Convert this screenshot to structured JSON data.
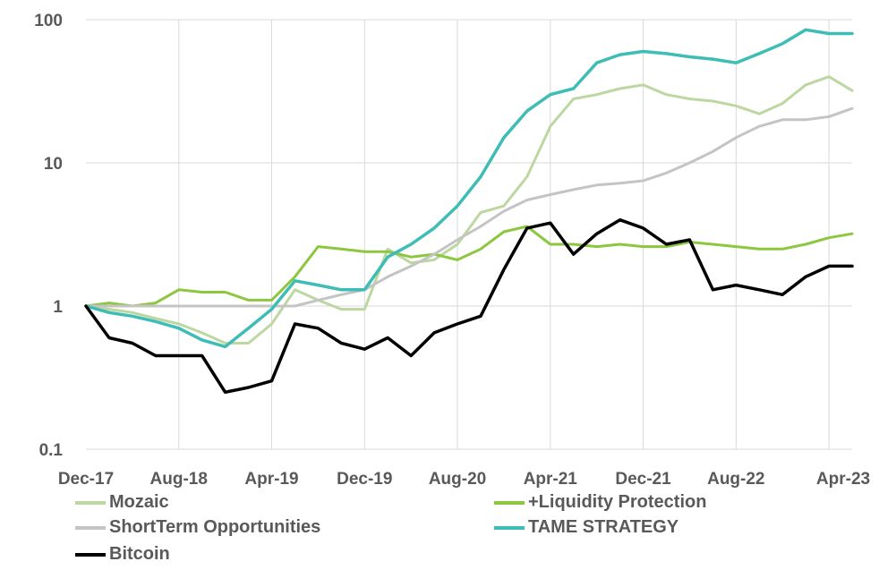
{
  "chart_data": {
    "type": "line",
    "title": "",
    "xlabel": "",
    "ylabel": "",
    "y_scale": "log",
    "ylim": [
      0.1,
      100
    ],
    "y_ticks": [
      "100",
      "10",
      "1",
      "0.1"
    ],
    "x_ticks": [
      "Dec-17",
      "Aug-18",
      "Apr-19",
      "Dec-19",
      "Aug-20",
      "Apr-21",
      "Dec-21",
      "Aug-22",
      "Apr-23"
    ],
    "x_range": [
      "Dec-17",
      "Jun-23"
    ],
    "grid": "vertical and horizontal light gray",
    "legend_position": "bottom",
    "series": [
      {
        "name": "Mozaic",
        "color": "#bcd7a0",
        "x": [
          "Dec-17",
          "Feb-18",
          "Apr-18",
          "Jun-18",
          "Aug-18",
          "Oct-18",
          "Dec-18",
          "Feb-19",
          "Apr-19",
          "Jun-19",
          "Aug-19",
          "Oct-19",
          "Dec-19",
          "Feb-20",
          "Apr-20",
          "Jun-20",
          "Aug-20",
          "Oct-20",
          "Dec-20",
          "Feb-21",
          "Apr-21",
          "Jun-21",
          "Aug-21",
          "Oct-21",
          "Dec-21",
          "Feb-22",
          "Apr-22",
          "Jun-22",
          "Aug-22",
          "Oct-22",
          "Dec-22",
          "Feb-23",
          "Apr-23",
          "Jun-23"
        ],
        "values": [
          1.0,
          0.95,
          0.9,
          0.82,
          0.75,
          0.65,
          0.55,
          0.55,
          0.75,
          1.3,
          1.1,
          0.95,
          0.95,
          2.5,
          2.0,
          2.1,
          2.7,
          4.5,
          5.0,
          8.0,
          18,
          28,
          30,
          33,
          35,
          30,
          28,
          27,
          25,
          22,
          26,
          35,
          40,
          32
        ]
      },
      {
        "name": "+Liquidity Protection",
        "color": "#8dc63f",
        "x": [
          "Dec-17",
          "Feb-18",
          "Apr-18",
          "Jun-18",
          "Aug-18",
          "Oct-18",
          "Dec-18",
          "Feb-19",
          "Apr-19",
          "Jun-19",
          "Aug-19",
          "Oct-19",
          "Dec-19",
          "Feb-20",
          "Apr-20",
          "Jun-20",
          "Aug-20",
          "Oct-20",
          "Dec-20",
          "Feb-21",
          "Apr-21",
          "Jun-21",
          "Aug-21",
          "Oct-21",
          "Dec-21",
          "Feb-22",
          "Apr-22",
          "Jun-22",
          "Aug-22",
          "Oct-22",
          "Dec-22",
          "Feb-23",
          "Apr-23",
          "Jun-23"
        ],
        "values": [
          1.0,
          1.05,
          1.0,
          1.05,
          1.3,
          1.25,
          1.25,
          1.1,
          1.1,
          1.6,
          2.6,
          2.5,
          2.4,
          2.4,
          2.2,
          2.3,
          2.1,
          2.5,
          3.3,
          3.6,
          2.7,
          2.7,
          2.6,
          2.7,
          2.6,
          2.6,
          2.8,
          2.7,
          2.6,
          2.5,
          2.5,
          2.7,
          3.0,
          3.2
        ]
      },
      {
        "name": "ShortTerm Opportunities",
        "color": "#c4c4c4",
        "x": [
          "Dec-17",
          "Feb-18",
          "Apr-18",
          "Jun-18",
          "Aug-18",
          "Oct-18",
          "Dec-18",
          "Feb-19",
          "Apr-19",
          "Jun-19",
          "Aug-19",
          "Oct-19",
          "Dec-19",
          "Feb-20",
          "Apr-20",
          "Jun-20",
          "Aug-20",
          "Oct-20",
          "Dec-20",
          "Feb-21",
          "Apr-21",
          "Jun-21",
          "Aug-21",
          "Oct-21",
          "Dec-21",
          "Feb-22",
          "Apr-22",
          "Jun-22",
          "Aug-22",
          "Oct-22",
          "Dec-22",
          "Feb-23",
          "Apr-23",
          "Jun-23"
        ],
        "values": [
          1.0,
          1.0,
          1.0,
          1.0,
          1.0,
          1.0,
          1.0,
          1.0,
          1.0,
          1.0,
          1.1,
          1.2,
          1.3,
          1.6,
          1.9,
          2.3,
          2.9,
          3.6,
          4.6,
          5.5,
          6.0,
          6.5,
          7.0,
          7.2,
          7.5,
          8.5,
          10,
          12,
          15,
          18,
          20,
          20,
          21,
          24
        ]
      },
      {
        "name": "TAME STRATEGY",
        "color": "#3dbdb5",
        "x": [
          "Dec-17",
          "Feb-18",
          "Apr-18",
          "Jun-18",
          "Aug-18",
          "Oct-18",
          "Dec-18",
          "Feb-19",
          "Apr-19",
          "Jun-19",
          "Aug-19",
          "Oct-19",
          "Dec-19",
          "Feb-20",
          "Apr-20",
          "Jun-20",
          "Aug-20",
          "Oct-20",
          "Dec-20",
          "Feb-21",
          "Apr-21",
          "Jun-21",
          "Aug-21",
          "Oct-21",
          "Dec-21",
          "Feb-22",
          "Apr-22",
          "Jun-22",
          "Aug-22",
          "Oct-22",
          "Dec-22",
          "Feb-23",
          "Apr-23",
          "Jun-23"
        ],
        "values": [
          1.0,
          0.9,
          0.85,
          0.78,
          0.7,
          0.58,
          0.52,
          0.7,
          0.95,
          1.5,
          1.4,
          1.3,
          1.3,
          2.2,
          2.7,
          3.5,
          5.0,
          8.0,
          15,
          23,
          30,
          33,
          50,
          57,
          60,
          58,
          55,
          53,
          50,
          58,
          68,
          85,
          80,
          80
        ]
      },
      {
        "name": "Bitcoin",
        "color": "#000000",
        "x": [
          "Dec-17",
          "Feb-18",
          "Apr-18",
          "Jun-18",
          "Aug-18",
          "Oct-18",
          "Dec-18",
          "Feb-19",
          "Apr-19",
          "Jun-19",
          "Aug-19",
          "Oct-19",
          "Dec-19",
          "Feb-20",
          "Apr-20",
          "Jun-20",
          "Aug-20",
          "Oct-20",
          "Dec-20",
          "Feb-21",
          "Apr-21",
          "Jun-21",
          "Aug-21",
          "Oct-21",
          "Dec-21",
          "Feb-22",
          "Apr-22",
          "Jun-22",
          "Aug-22",
          "Oct-22",
          "Dec-22",
          "Feb-23",
          "Apr-23",
          "Jun-23"
        ],
        "values": [
          1.0,
          0.6,
          0.55,
          0.45,
          0.45,
          0.45,
          0.25,
          0.27,
          0.3,
          0.75,
          0.7,
          0.55,
          0.5,
          0.6,
          0.45,
          0.65,
          0.75,
          0.85,
          1.8,
          3.5,
          3.8,
          2.3,
          3.2,
          4.0,
          3.5,
          2.7,
          2.9,
          1.3,
          1.4,
          1.3,
          1.2,
          1.6,
          1.9,
          1.9
        ]
      }
    ]
  }
}
